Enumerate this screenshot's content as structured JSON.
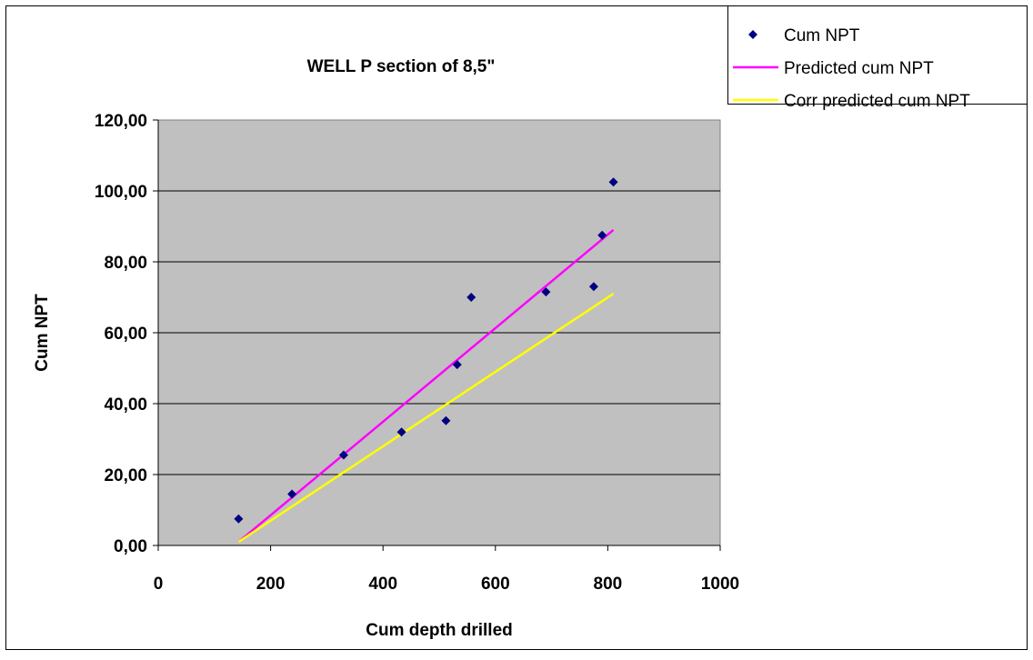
{
  "chart_data": {
    "type": "scatter",
    "title": "WELL P section of 8,5\"",
    "xlabel": "Cum depth drilled",
    "ylabel": "Cum NPT",
    "xlim": [
      0,
      1000
    ],
    "ylim": [
      0,
      120
    ],
    "x_ticks": [
      "0",
      "200",
      "400",
      "600",
      "800",
      "1000"
    ],
    "y_ticks": [
      "0,00",
      "20,00",
      "40,00",
      "60,00",
      "80,00",
      "100,00",
      "120,00"
    ],
    "grid": "horizontal",
    "legend_position": "top-right",
    "plot_background": "#c0c0c0",
    "series": [
      {
        "name": "Cum NPT",
        "kind": "scatter",
        "marker": "diamond",
        "color": "#000080",
        "points": [
          [
            143,
            7.5
          ],
          [
            238,
            14.5
          ],
          [
            330,
            25.5
          ],
          [
            433,
            32
          ],
          [
            512,
            35.2
          ],
          [
            532,
            51
          ],
          [
            557,
            70
          ],
          [
            690,
            71.5
          ],
          [
            775,
            73
          ],
          [
            790,
            87.5
          ],
          [
            810,
            102.5
          ]
        ]
      },
      {
        "name": "Predicted cum NPT",
        "kind": "line",
        "color": "#ff00ff",
        "points": [
          [
            143,
            1
          ],
          [
            810,
            89
          ]
        ]
      },
      {
        "name": "Corr predicted cum NPT",
        "kind": "line",
        "color": "#ffff00",
        "points": [
          [
            143,
            1
          ],
          [
            810,
            71
          ]
        ]
      }
    ]
  }
}
